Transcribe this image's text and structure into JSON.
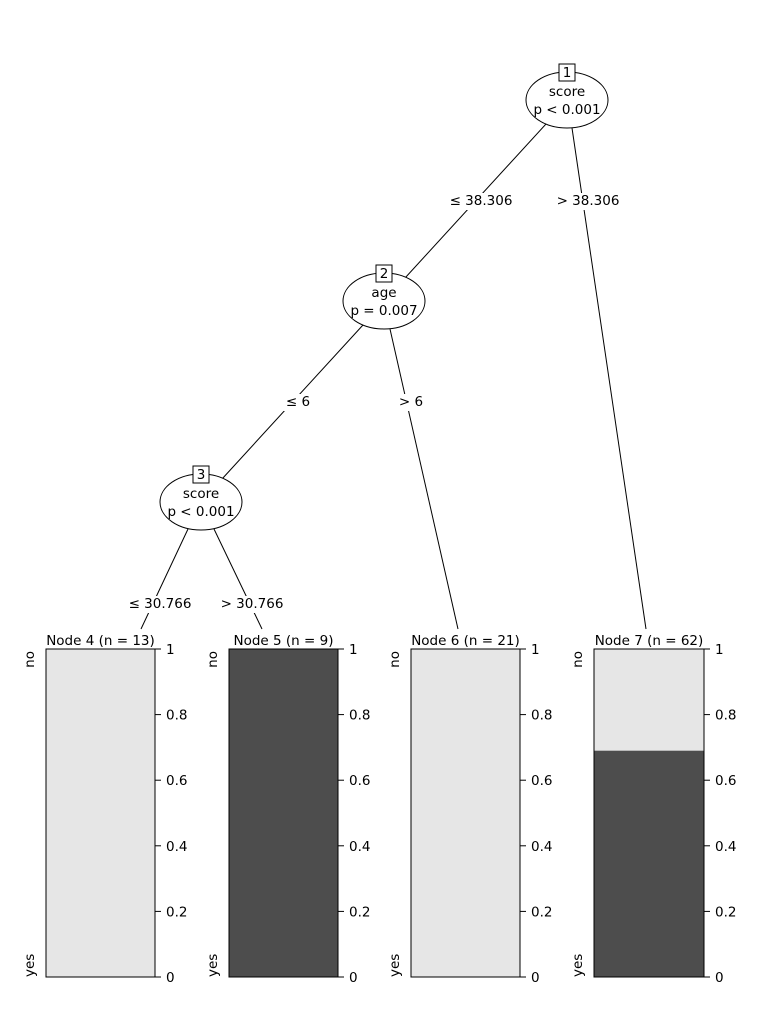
{
  "colors": {
    "no": "#e6e6e6",
    "yes": "#4d4d4d",
    "line": "#000000",
    "background": "#ffffff"
  },
  "inner_nodes": [
    {
      "id": "1",
      "variable": "score",
      "p": "p < 0.001"
    },
    {
      "id": "2",
      "variable": "age",
      "p": "p = 0.007"
    },
    {
      "id": "3",
      "variable": "score",
      "p": "p < 0.001"
    }
  ],
  "edges": [
    {
      "from": "1",
      "to": "2",
      "label": "≤ 38.306"
    },
    {
      "from": "1",
      "to": "7",
      "label": "> 38.306"
    },
    {
      "from": "2",
      "to": "3",
      "label": "≤ 6"
    },
    {
      "from": "2",
      "to": "6",
      "label": "> 6"
    },
    {
      "from": "3",
      "to": "4",
      "label": "≤ 30.766"
    },
    {
      "from": "3",
      "to": "5",
      "label": "> 30.766"
    }
  ],
  "terminal_nodes": [
    {
      "id": "4",
      "title": "Node 4 (n = 13)",
      "yes_fraction": 0.0
    },
    {
      "id": "5",
      "title": "Node 5 (n = 9)",
      "yes_fraction": 1.0
    },
    {
      "id": "6",
      "title": "Node 6 (n = 21)",
      "yes_fraction": 0.0
    },
    {
      "id": "7",
      "title": "Node 7 (n = 62)",
      "yes_fraction": 0.69
    }
  ],
  "class_labels": {
    "top": "no",
    "bottom": "yes"
  },
  "axis_ticks": [
    {
      "value": 1,
      "label": "1"
    },
    {
      "value": 0.8,
      "label": "0.8"
    },
    {
      "value": 0.6,
      "label": "0.6"
    },
    {
      "value": 0.4,
      "label": "0.4"
    },
    {
      "value": 0.2,
      "label": "0.2"
    },
    {
      "value": 0,
      "label": "0"
    }
  ]
}
